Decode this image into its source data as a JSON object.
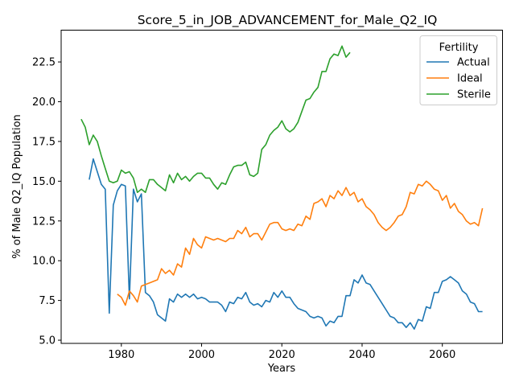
{
  "chart_data": {
    "type": "line",
    "title": "Score_5_in_JOB_ADVANCEMENT_for_Male_Q2_IQ",
    "xlabel": "Years",
    "ylabel": "% of Male Q2_IQ Population",
    "xlim": [
      1965,
      2075
    ],
    "ylim": [
      4.8,
      24.5
    ],
    "xticks": [
      1980,
      2000,
      2020,
      2040,
      2060
    ],
    "yticks": [
      5.0,
      7.5,
      10.0,
      12.5,
      15.0,
      17.5,
      20.0,
      22.5
    ],
    "ytick_labels": [
      "5.0",
      "7.5",
      "10.0",
      "12.5",
      "15.0",
      "17.5",
      "20.0",
      "22.5"
    ],
    "grid": false,
    "legend": {
      "title": "Fertility",
      "placement": "top-right"
    },
    "series": [
      {
        "name": "Actual",
        "color": "#1f77b4",
        "x": [
          1972,
          1973,
          1974,
          1975,
          1976,
          1977,
          1978,
          1979,
          1980,
          1981,
          1982,
          1983,
          1984,
          1985,
          1986,
          1987,
          1988,
          1989,
          1990,
          1991,
          1992,
          1993,
          1994,
          1995,
          1996,
          1997,
          1998,
          1999,
          2000,
          2001,
          2002,
          2003,
          2004,
          2005,
          2006,
          2007,
          2008,
          2009,
          2010,
          2011,
          2012,
          2013,
          2014,
          2015,
          2016,
          2017,
          2018,
          2019,
          2020,
          2021,
          2022,
          2023,
          2024,
          2025,
          2026,
          2027,
          2028,
          2029,
          2030,
          2031,
          2032,
          2033,
          2034,
          2035,
          2036,
          2037,
          2038,
          2039,
          2040,
          2041,
          2042,
          2043,
          2044,
          2045,
          2046,
          2047,
          2048,
          2049,
          2050,
          2051,
          2052,
          2053,
          2054,
          2055,
          2056,
          2057,
          2058,
          2059,
          2060,
          2061,
          2062,
          2063,
          2064,
          2065,
          2066,
          2067,
          2068,
          2069,
          2070
        ],
        "y": [
          15.1,
          16.4,
          15.6,
          14.8,
          14.5,
          6.7,
          13.5,
          14.4,
          14.8,
          14.7,
          7.6,
          14.5,
          13.7,
          14.2,
          8.0,
          7.8,
          7.4,
          6.6,
          6.4,
          6.2,
          7.6,
          7.4,
          7.9,
          7.7,
          7.9,
          7.7,
          7.9,
          7.6,
          7.7,
          7.6,
          7.4,
          7.4,
          7.4,
          7.2,
          6.8,
          7.4,
          7.3,
          7.7,
          7.6,
          8.0,
          7.4,
          7.2,
          7.3,
          7.1,
          7.5,
          7.4,
          8.0,
          7.7,
          8.1,
          7.7,
          7.7,
          7.3,
          7.0,
          6.9,
          6.8,
          6.5,
          6.4,
          6.5,
          6.4,
          5.9,
          6.2,
          6.1,
          6.5,
          6.5,
          7.8,
          7.8,
          8.8,
          8.6,
          9.1,
          8.6,
          8.5,
          8.1,
          7.7,
          7.3,
          6.9,
          6.5,
          6.4,
          6.1,
          6.1,
          5.8,
          6.1,
          5.7,
          6.3,
          6.2,
          7.1,
          7.0,
          8.0,
          8.0,
          8.7,
          8.8,
          9.0,
          8.8,
          8.6,
          8.1,
          7.9,
          7.4,
          7.3,
          6.8,
          6.8
        ]
      },
      {
        "name": "Ideal",
        "color": "#ff7f0e",
        "x": [
          1979,
          1980,
          1981,
          1982,
          1983,
          1984,
          1985,
          1986,
          1987,
          1988,
          1989,
          1990,
          1991,
          1992,
          1993,
          1994,
          1995,
          1996,
          1997,
          1998,
          1999,
          2000,
          2001,
          2002,
          2003,
          2004,
          2005,
          2006,
          2007,
          2008,
          2009,
          2010,
          2011,
          2012,
          2013,
          2014,
          2015,
          2016,
          2017,
          2018,
          2019,
          2020,
          2021,
          2022,
          2023,
          2024,
          2025,
          2026,
          2027,
          2028,
          2029,
          2030,
          2031,
          2032,
          2033,
          2034,
          2035,
          2036,
          2037,
          2038,
          2039,
          2040,
          2041,
          2042,
          2043,
          2044,
          2045,
          2046,
          2047,
          2048,
          2049,
          2050,
          2051,
          2052,
          2053,
          2054,
          2055,
          2056,
          2057,
          2058,
          2059,
          2060,
          2061,
          2062,
          2063,
          2064,
          2065,
          2066,
          2067,
          2068,
          2069,
          2070
        ],
        "y": [
          7.9,
          7.7,
          7.2,
          8.1,
          7.8,
          7.4,
          8.4,
          8.5,
          8.6,
          8.7,
          8.8,
          9.5,
          9.2,
          9.4,
          9.1,
          9.8,
          9.6,
          10.8,
          10.4,
          11.4,
          11.0,
          10.8,
          11.5,
          11.4,
          11.3,
          11.4,
          11.3,
          11.2,
          11.4,
          11.4,
          11.9,
          11.7,
          12.1,
          11.5,
          11.7,
          11.7,
          11.3,
          11.8,
          12.3,
          12.4,
          12.4,
          12.0,
          11.9,
          12.0,
          11.9,
          12.3,
          12.2,
          12.8,
          12.6,
          13.6,
          13.7,
          13.9,
          13.4,
          14.1,
          13.9,
          14.4,
          14.1,
          14.6,
          14.1,
          14.3,
          13.7,
          13.9,
          13.4,
          13.2,
          12.9,
          12.4,
          12.1,
          11.9,
          12.1,
          12.4,
          12.8,
          12.9,
          13.4,
          14.3,
          14.2,
          14.8,
          14.7,
          15.0,
          14.8,
          14.5,
          14.4,
          13.8,
          14.1,
          13.3,
          13.6,
          13.1,
          12.9,
          12.5,
          12.3,
          12.4,
          12.2,
          13.3
        ]
      },
      {
        "name": "Sterile",
        "color": "#2ca02c",
        "x": [
          1970,
          1971,
          1972,
          1973,
          1974,
          1975,
          1976,
          1977,
          1978,
          1979,
          1980,
          1981,
          1982,
          1983,
          1984,
          1985,
          1986,
          1987,
          1988,
          1989,
          1990,
          1991,
          1992,
          1993,
          1994,
          1995,
          1996,
          1997,
          1998,
          1999,
          2000,
          2001,
          2002,
          2003,
          2004,
          2005,
          2006,
          2007,
          2008,
          2009,
          2010,
          2011,
          2012,
          2013,
          2014,
          2015,
          2016,
          2017,
          2018,
          2019,
          2020,
          2021,
          2022,
          2023,
          2024,
          2025,
          2026,
          2027,
          2028,
          2029,
          2030,
          2031,
          2032,
          2033,
          2034,
          2035,
          2036,
          2037
        ],
        "y": [
          18.9,
          18.4,
          17.3,
          17.9,
          17.5,
          16.6,
          15.8,
          15.0,
          14.9,
          15.0,
          15.7,
          15.5,
          15.6,
          15.2,
          14.3,
          14.5,
          14.3,
          15.1,
          15.1,
          14.8,
          14.6,
          14.4,
          15.4,
          14.9,
          15.5,
          15.1,
          15.3,
          15.0,
          15.3,
          15.5,
          15.5,
          15.2,
          15.2,
          14.8,
          14.5,
          14.9,
          14.8,
          15.4,
          15.9,
          16.0,
          16.0,
          16.2,
          15.4,
          15.3,
          15.5,
          17.0,
          17.3,
          17.9,
          18.2,
          18.4,
          18.8,
          18.3,
          18.1,
          18.3,
          18.7,
          19.4,
          20.1,
          20.2,
          20.6,
          20.9,
          21.9,
          21.9,
          22.7,
          23.0,
          22.9,
          23.5,
          22.8,
          23.1
        ]
      }
    ]
  }
}
